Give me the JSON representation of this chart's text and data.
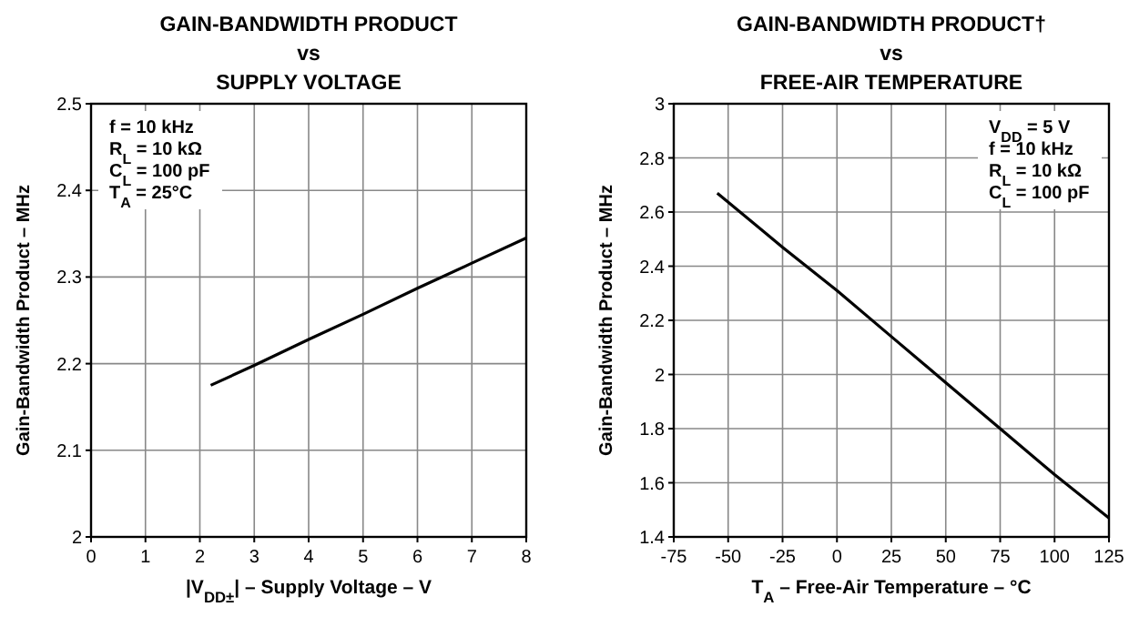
{
  "chart_data": [
    {
      "type": "line",
      "title": "GAIN-BANDWIDTH PRODUCT\nvs\nSUPPLY VOLTAGE",
      "xlabel": "|V$_{DD±}$| – Supply Voltage – V",
      "ylabel": "Gain-Bandwidth Product – MHz",
      "annotations": [
        "f = 10 kHz\nR$_{L}$ = 10 kΩ\nC$_{L}$ = 100 pF\nT$_{A}$ = 25°C"
      ],
      "x": [
        2.2,
        3,
        4,
        5,
        6,
        7,
        8
      ],
      "series": [
        {
          "color": "#000000",
          "values": [
            2.175,
            2.198,
            2.228,
            2.257,
            2.287,
            2.316,
            2.345
          ]
        }
      ],
      "xlim": [
        0,
        8
      ],
      "xticks": [
        0,
        1,
        2,
        3,
        4,
        5,
        6,
        7,
        8
      ],
      "ylim": [
        2,
        2.5
      ],
      "yticks": [
        2,
        2.1,
        2.2,
        2.3,
        2.4,
        2.5
      ],
      "grid": true,
      "line_style": "solid"
    },
    {
      "type": "line",
      "title": "GAIN-BANDWIDTH PRODUCT†\nvs\nFREE-AIR TEMPERATURE",
      "xlabel": "T$_{A}$ – Free-Air Temperature – °C",
      "ylabel": "Gain-Bandwidth Product – MHz",
      "annotations": [
        "V$_{DD}$ = 5 V\nf = 10 kHz\nR$_{L}$ = 10 kΩ\nC$_{L}$ = 100 pF"
      ],
      "x": [
        -55,
        -25,
        0,
        25,
        50,
        75,
        100,
        125
      ],
      "series": [
        {
          "color": "#000000",
          "values": [
            2.67,
            2.47,
            2.31,
            2.14,
            1.97,
            1.8,
            1.63,
            1.47
          ]
        }
      ],
      "xlim": [
        -75,
        125
      ],
      "xticks": [
        -75,
        -50,
        -25,
        0,
        25,
        50,
        75,
        100,
        125
      ],
      "ylim": [
        1.4,
        3
      ],
      "yticks": [
        1.4,
        1.6,
        1.8,
        2,
        2.2,
        2.4,
        2.6,
        2.8,
        3
      ],
      "grid": true,
      "line_style": "solid"
    }
  ]
}
